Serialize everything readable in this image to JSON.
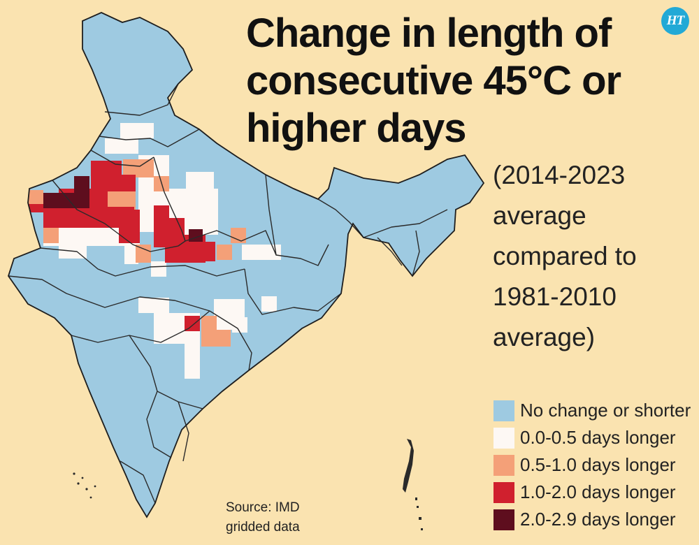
{
  "title": {
    "line1": "Change in length of",
    "line2": "consecutive 45°C  or",
    "line3": "higher days"
  },
  "subtitle": {
    "line1": "(2014-2023",
    "line2": "average",
    "line3": "compared to",
    "line4": "1981-2010",
    "line5": "average)"
  },
  "logo": {
    "text": "HT",
    "color": "#22a9d6"
  },
  "source": {
    "line1": "Source: IMD",
    "line2": "gridded data"
  },
  "colors": {
    "background": "#fae3b0",
    "no_change": "#9ecae1",
    "lt_0_5": "#fdf8f4",
    "lt_1_0": "#f4a078",
    "lt_2_0": "#d0202e",
    "lt_2_9": "#5e0e1e",
    "boundary": "#2a2a2a"
  },
  "legend": [
    {
      "label": "No change or shorter",
      "color": "#9ecae1"
    },
    {
      "label": "0.0-0.5 days longer",
      "color": "#fdf8f4"
    },
    {
      "label": "0.5-1.0 days longer",
      "color": "#f4a078"
    },
    {
      "label": "1.0-2.0 days longer",
      "color": "#d0202e"
    },
    {
      "label": "2.0-2.9 days longer",
      "color": "#5e0e1e"
    }
  ]
}
